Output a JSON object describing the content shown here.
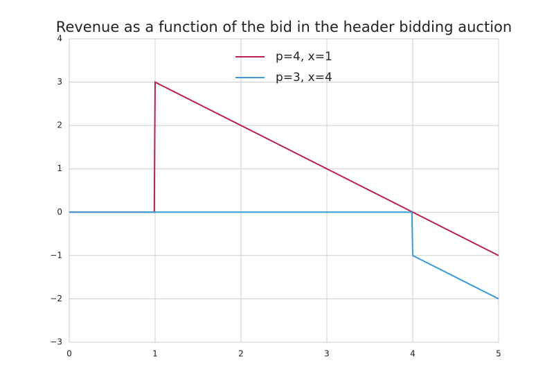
{
  "chart_data": {
    "type": "line",
    "title": "Revenue as a function of the bid in the header bidding auction",
    "x": [
      0,
      0.99,
      1,
      3.99,
      4,
      5
    ],
    "series": [
      {
        "name": "p=4, x=1",
        "color": "#b8214b",
        "values": [
          0,
          0,
          3,
          0.01,
          0,
          -1
        ]
      },
      {
        "name": "p=3, x=4",
        "color": "#3b9bd6",
        "values": [
          0,
          0,
          0,
          0,
          -1,
          -2
        ]
      }
    ],
    "xlim": [
      0,
      5
    ],
    "xticks": [
      0,
      1,
      2,
      3,
      4,
      5
    ],
    "ylim": [
      -3,
      4
    ],
    "yticks": [
      {
        "value": -3,
        "label": "−3"
      },
      {
        "value": -2,
        "label": "−2"
      },
      {
        "value": -1,
        "label": "−1"
      },
      0,
      1,
      2,
      3,
      4
    ],
    "grid": true,
    "legend": "upper center"
  }
}
